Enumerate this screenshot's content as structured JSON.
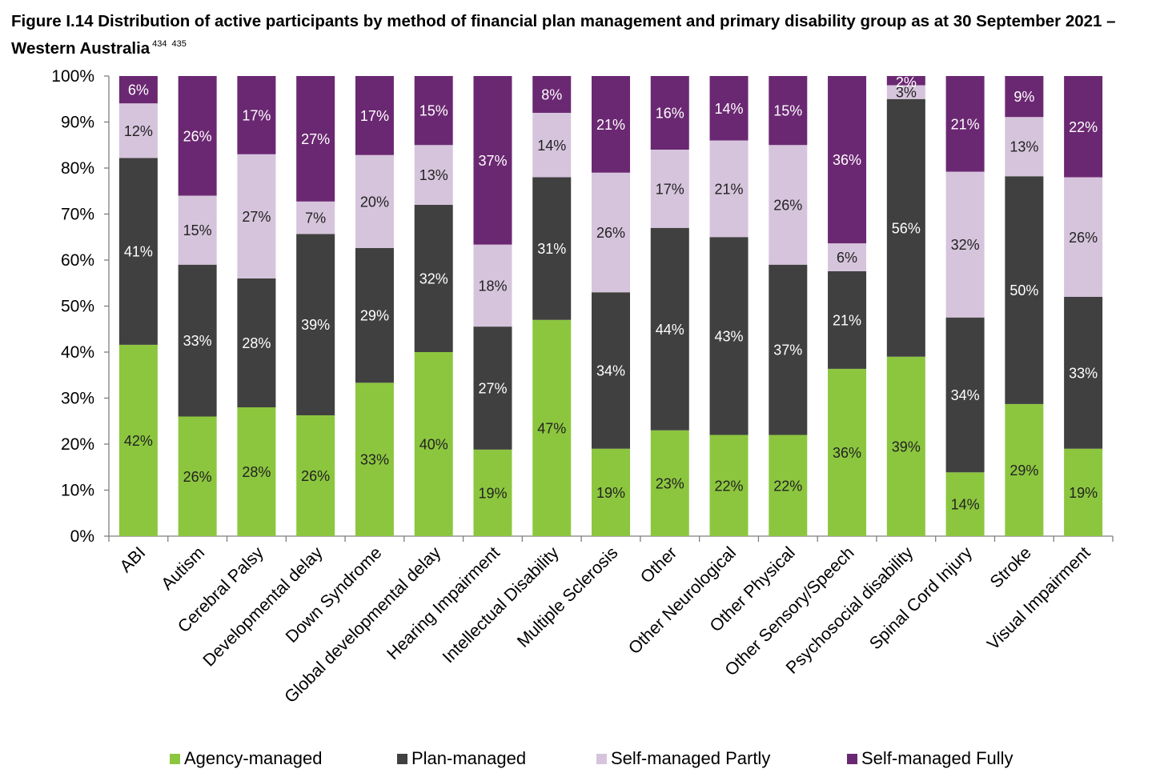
{
  "title": {
    "text": "Figure I.14 Distribution of active participants by method of financial plan management and primary disability group as at 30 September 2021 – Western Australia",
    "footnotes": [
      "434",
      "435"
    ]
  },
  "chart_data": {
    "type": "bar",
    "stacked": true,
    "percent": true,
    "categories": [
      "ABI",
      "Autism",
      "Cerebral Palsy",
      "Developmental delay",
      "Down Syndrome",
      "Global developmental delay",
      "Hearing Impairment",
      "Intellectual Disability",
      "Multiple Sclerosis",
      "Other",
      "Other Neurological",
      "Other Physical",
      "Other Sensory/Speech",
      "Psychosocial disability",
      "Spinal Cord Injury",
      "Stroke",
      "Visual Impairment"
    ],
    "series": [
      {
        "name": "Agency-managed",
        "color": "#8cc63f",
        "label_color": "#222222",
        "values": [
          42,
          26,
          28,
          26,
          33,
          40,
          19,
          47,
          19,
          23,
          22,
          22,
          36,
          39,
          14,
          29,
          19
        ],
        "labels": [
          "42%",
          "26%",
          "28%",
          "26%",
          "33%",
          "40%",
          "19%",
          "47%",
          "19%",
          "23%",
          "22%",
          "22%",
          "36%",
          "39%",
          "14%",
          "29%",
          "19%"
        ]
      },
      {
        "name": "Plan-managed",
        "color": "#404040",
        "label_color": "#ffffff",
        "values": [
          41,
          33,
          28,
          39,
          29,
          32,
          27,
          31,
          34,
          44,
          43,
          37,
          21,
          56,
          34,
          50,
          33
        ],
        "labels": [
          "41%",
          "33%",
          "28%",
          "39%",
          "29%",
          "32%",
          "27%",
          "31%",
          "34%",
          "44%",
          "43%",
          "37%",
          "21%",
          "56%",
          "34%",
          "50%",
          "33%"
        ]
      },
      {
        "name": "Self-managed Partly",
        "color": "#d6c4dc",
        "label_color": "#222222",
        "values": [
          12,
          15,
          27,
          7,
          20,
          13,
          18,
          14,
          26,
          17,
          21,
          26,
          6,
          3,
          32,
          13,
          26
        ],
        "labels": [
          "12%",
          "15%",
          "27%",
          "7%",
          "20%",
          "13%",
          "18%",
          "14%",
          "26%",
          "17%",
          "21%",
          "26%",
          "6%",
          "3%",
          "32%",
          "13%",
          "26%"
        ]
      },
      {
        "name": "Self-managed Fully",
        "color": "#6b2872",
        "label_color": "#ffffff",
        "values": [
          6,
          26,
          17,
          27,
          17,
          15,
          37,
          8,
          21,
          16,
          14,
          15,
          36,
          2,
          21,
          9,
          22
        ],
        "labels": [
          "6%",
          "26%",
          "17%",
          "27%",
          "17%",
          "15%",
          "37%",
          "8%",
          "21%",
          "16%",
          "14%",
          "15%",
          "36%",
          "2%",
          "21%",
          "9%",
          "22%"
        ]
      }
    ],
    "ylim": [
      0,
      100
    ],
    "yticks": [
      "0%",
      "10%",
      "20%",
      "30%",
      "40%",
      "50%",
      "60%",
      "70%",
      "80%",
      "90%",
      "100%"
    ],
    "xlabel": "",
    "ylabel": "",
    "grid": false,
    "legend_position": "bottom"
  }
}
